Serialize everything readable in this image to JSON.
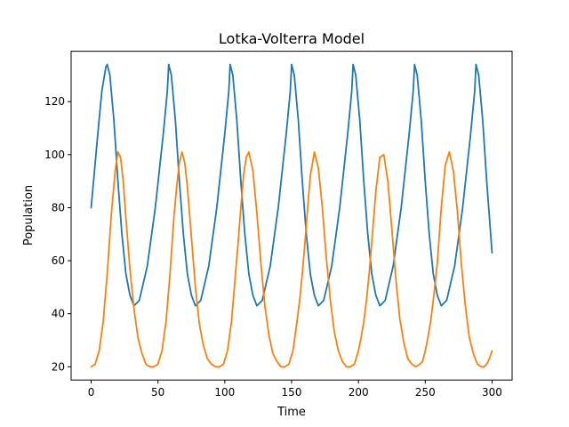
{
  "chart_data": {
    "type": "line",
    "title": "Lotka-Volterra Model",
    "xlabel": "Time",
    "ylabel": "Population",
    "xlim": [
      -15,
      315
    ],
    "ylim": [
      15,
      139
    ],
    "xticks": [
      0,
      50,
      100,
      150,
      200,
      250,
      300
    ],
    "yticks": [
      20,
      40,
      60,
      80,
      100,
      120
    ],
    "grid": false,
    "colors": [
      "#1f77b4",
      "#ff7f0e"
    ],
    "series": [
      {
        "color": "#1f77b4",
        "x": [
          0,
          5,
          8,
          11,
          12,
          14,
          17,
          20,
          23,
          26,
          29,
          32,
          36,
          42,
          48,
          54,
          57,
          58,
          60,
          63,
          66,
          69,
          72,
          75,
          78,
          82,
          88,
          94,
          100,
          103,
          104,
          106,
          109,
          112,
          115,
          118,
          121,
          124,
          128,
          134,
          140,
          146,
          149,
          150,
          152,
          155,
          158,
          161,
          164,
          167,
          170,
          174,
          180,
          186,
          192,
          195,
          196,
          198,
          201,
          204,
          207,
          210,
          213,
          216,
          220,
          226,
          232,
          238,
          241,
          242,
          244,
          247,
          250,
          253,
          256,
          259,
          262,
          266,
          272,
          278,
          284,
          287,
          288,
          290,
          293,
          296,
          300
        ],
        "y": [
          80,
          108,
          124,
          133,
          134,
          130,
          113,
          90,
          70,
          55,
          47,
          43,
          45,
          58,
          80,
          108,
          124,
          134,
          130,
          113,
          90,
          70,
          55,
          47,
          43,
          45,
          58,
          80,
          108,
          124,
          134,
          130,
          113,
          90,
          70,
          55,
          47,
          43,
          45,
          58,
          80,
          108,
          124,
          134,
          130,
          113,
          90,
          70,
          55,
          47,
          43,
          45,
          58,
          80,
          108,
          124,
          134,
          130,
          113,
          90,
          70,
          55,
          47,
          43,
          45,
          58,
          80,
          108,
          124,
          134,
          130,
          113,
          90,
          70,
          55,
          47,
          43,
          45,
          58,
          80,
          108,
          124,
          134,
          130,
          113,
          90,
          63
        ]
      },
      {
        "color": "#ff7f0e",
        "x": [
          0,
          3,
          6,
          9,
          12,
          15,
          18,
          20,
          22,
          24,
          26,
          29,
          32,
          35,
          38,
          41,
          44,
          47,
          50,
          53,
          56,
          59,
          62,
          64,
          66,
          68,
          70,
          72,
          75,
          78,
          81,
          84,
          87,
          90,
          93,
          96,
          99,
          102,
          105,
          108,
          110,
          112,
          114,
          116,
          118,
          121,
          124,
          127,
          130,
          133,
          136,
          139,
          142,
          145,
          148,
          151,
          154,
          156,
          158,
          160,
          162,
          164,
          167,
          170,
          173,
          176,
          179,
          182,
          185,
          188,
          191,
          194,
          197,
          200,
          202,
          204,
          206,
          208,
          210,
          213,
          216,
          219,
          222,
          225,
          228,
          231,
          234,
          237,
          240,
          243,
          246,
          248,
          250,
          252,
          254,
          256,
          259,
          262,
          265,
          268,
          271,
          274,
          277,
          280,
          283,
          286,
          289,
          292,
          294,
          296,
          298,
          300
        ],
        "y": [
          20,
          21,
          26,
          37,
          55,
          77,
          94,
          101,
          99,
          90,
          76,
          57,
          42,
          31,
          25,
          21,
          20,
          20,
          21,
          26,
          37,
          55,
          77,
          88,
          97,
          101,
          97,
          88,
          69,
          50,
          36,
          28,
          23,
          21,
          20,
          20,
          21,
          26,
          37,
          55,
          67,
          80,
          92,
          99,
          101,
          94,
          78,
          59,
          43,
          32,
          25,
          22,
          20,
          20,
          21,
          26,
          37,
          45,
          55,
          67,
          80,
          92,
          101,
          95,
          80,
          61,
          45,
          33,
          26,
          22,
          20,
          20,
          21,
          26,
          31,
          37,
          45,
          55,
          67,
          86,
          99,
          100,
          90,
          72,
          53,
          38,
          29,
          23,
          21,
          20,
          21,
          22,
          26,
          31,
          37,
          45,
          59,
          80,
          96,
          101,
          94,
          79,
          59,
          43,
          31,
          25,
          21,
          20,
          20,
          21,
          23,
          26
        ]
      }
    ]
  }
}
